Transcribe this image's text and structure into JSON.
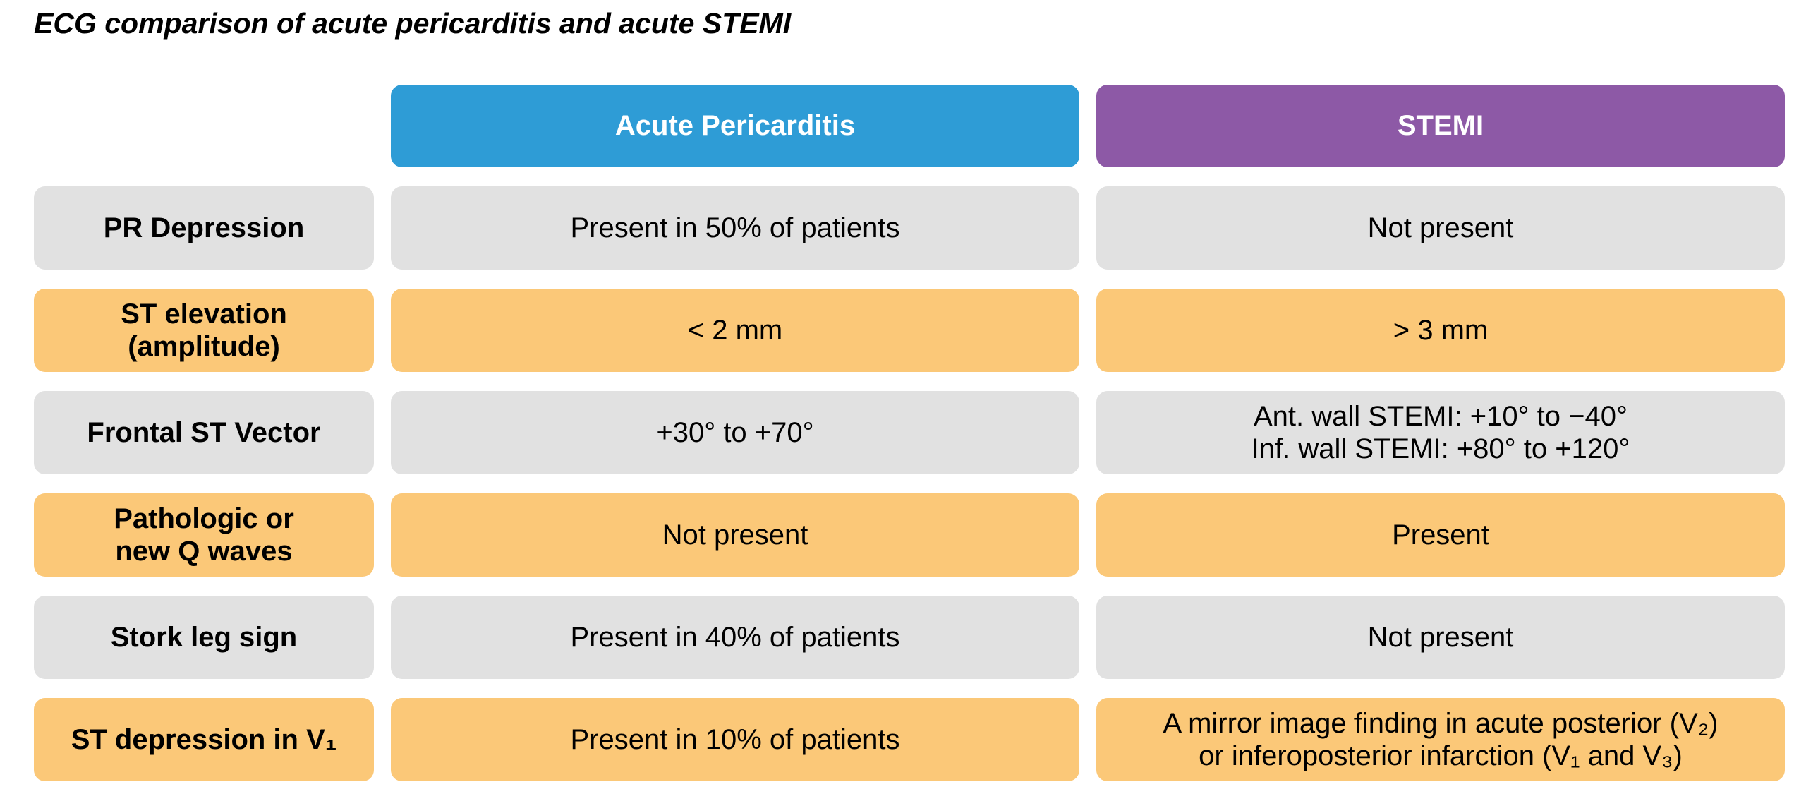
{
  "colors": {
    "pericarditis_header": "#2E9CD6",
    "stemi_header": "#8D59A6",
    "row_gray": "#E1E1E1",
    "row_orange": "#FBC878",
    "header_text": "#FFFFFF",
    "body_text": "#000000"
  },
  "chart_data": {
    "type": "table",
    "title": "ECG comparison of acute pericarditis and acute STEMI",
    "columns": [
      "",
      "Acute Pericarditis",
      "STEMI"
    ],
    "rows": [
      {
        "label": "PR Depression",
        "pericarditis": "Present in 50% of patients",
        "stemi": "Not present",
        "tone": "gray"
      },
      {
        "label": "ST elevation\n(amplitude)",
        "pericarditis": "< 2 mm",
        "stemi": "> 3 mm",
        "tone": "orange"
      },
      {
        "label": "Frontal ST Vector",
        "pericarditis": "+30° to +70°",
        "stemi": "Ant. wall STEMI: +10° to −40°\nInf. wall STEMI: +80° to +120°",
        "tone": "gray"
      },
      {
        "label": "Pathologic or\nnew Q waves",
        "pericarditis": "Not present",
        "stemi": "Present",
        "tone": "orange"
      },
      {
        "label": "Stork leg sign",
        "pericarditis": "Present in 40% of patients",
        "stemi": "Not present",
        "tone": "gray"
      },
      {
        "label": "ST depression in V₁",
        "pericarditis": "Present in 10% of patients",
        "stemi": "A mirror image finding in acute posterior (V₂)\nor inferoposterior infarction (V₁ and V₃)",
        "tone": "orange"
      }
    ]
  }
}
